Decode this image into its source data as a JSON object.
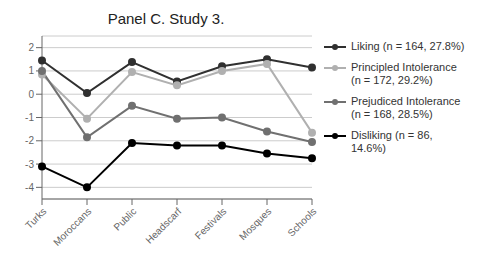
{
  "chart_data": {
    "type": "line",
    "title": "Panel C. Study 3.",
    "categories": [
      "Turks",
      "Moroccans",
      "Public",
      "Headscarf",
      "Festivals",
      "Mosques",
      "Schools"
    ],
    "series": [
      {
        "name": "Liking (n = 164, 27.8%)",
        "values": [
          1.45,
          0.05,
          1.38,
          0.55,
          1.2,
          1.5,
          1.15
        ],
        "color": "#303030",
        "marker": "circle"
      },
      {
        "name": "Principled Intolerance\n(n = 172, 29.2%)",
        "values": [
          0.85,
          -1.05,
          0.95,
          0.38,
          1.0,
          1.3,
          -1.65
        ],
        "color": "#b0b0b0",
        "marker": "circle"
      },
      {
        "name": "Prejudiced Intolerance\n(n = 168, 28.5%)",
        "values": [
          1.0,
          -1.85,
          -0.5,
          -1.05,
          -1.0,
          -1.6,
          -2.05
        ],
        "color": "#707070",
        "marker": "circle"
      },
      {
        "name": "Disliking (n = 86,\n14.6%)",
        "values": [
          -3.1,
          -4.0,
          -2.1,
          -2.2,
          -2.2,
          -2.55,
          -2.75
        ],
        "color": "#000000",
        "marker": "circle"
      }
    ],
    "ylim": [
      -4.5,
      2.5
    ],
    "yticks": [
      -4,
      -3,
      -2,
      -1,
      0,
      1,
      2
    ],
    "grid": true,
    "legend": "right"
  }
}
